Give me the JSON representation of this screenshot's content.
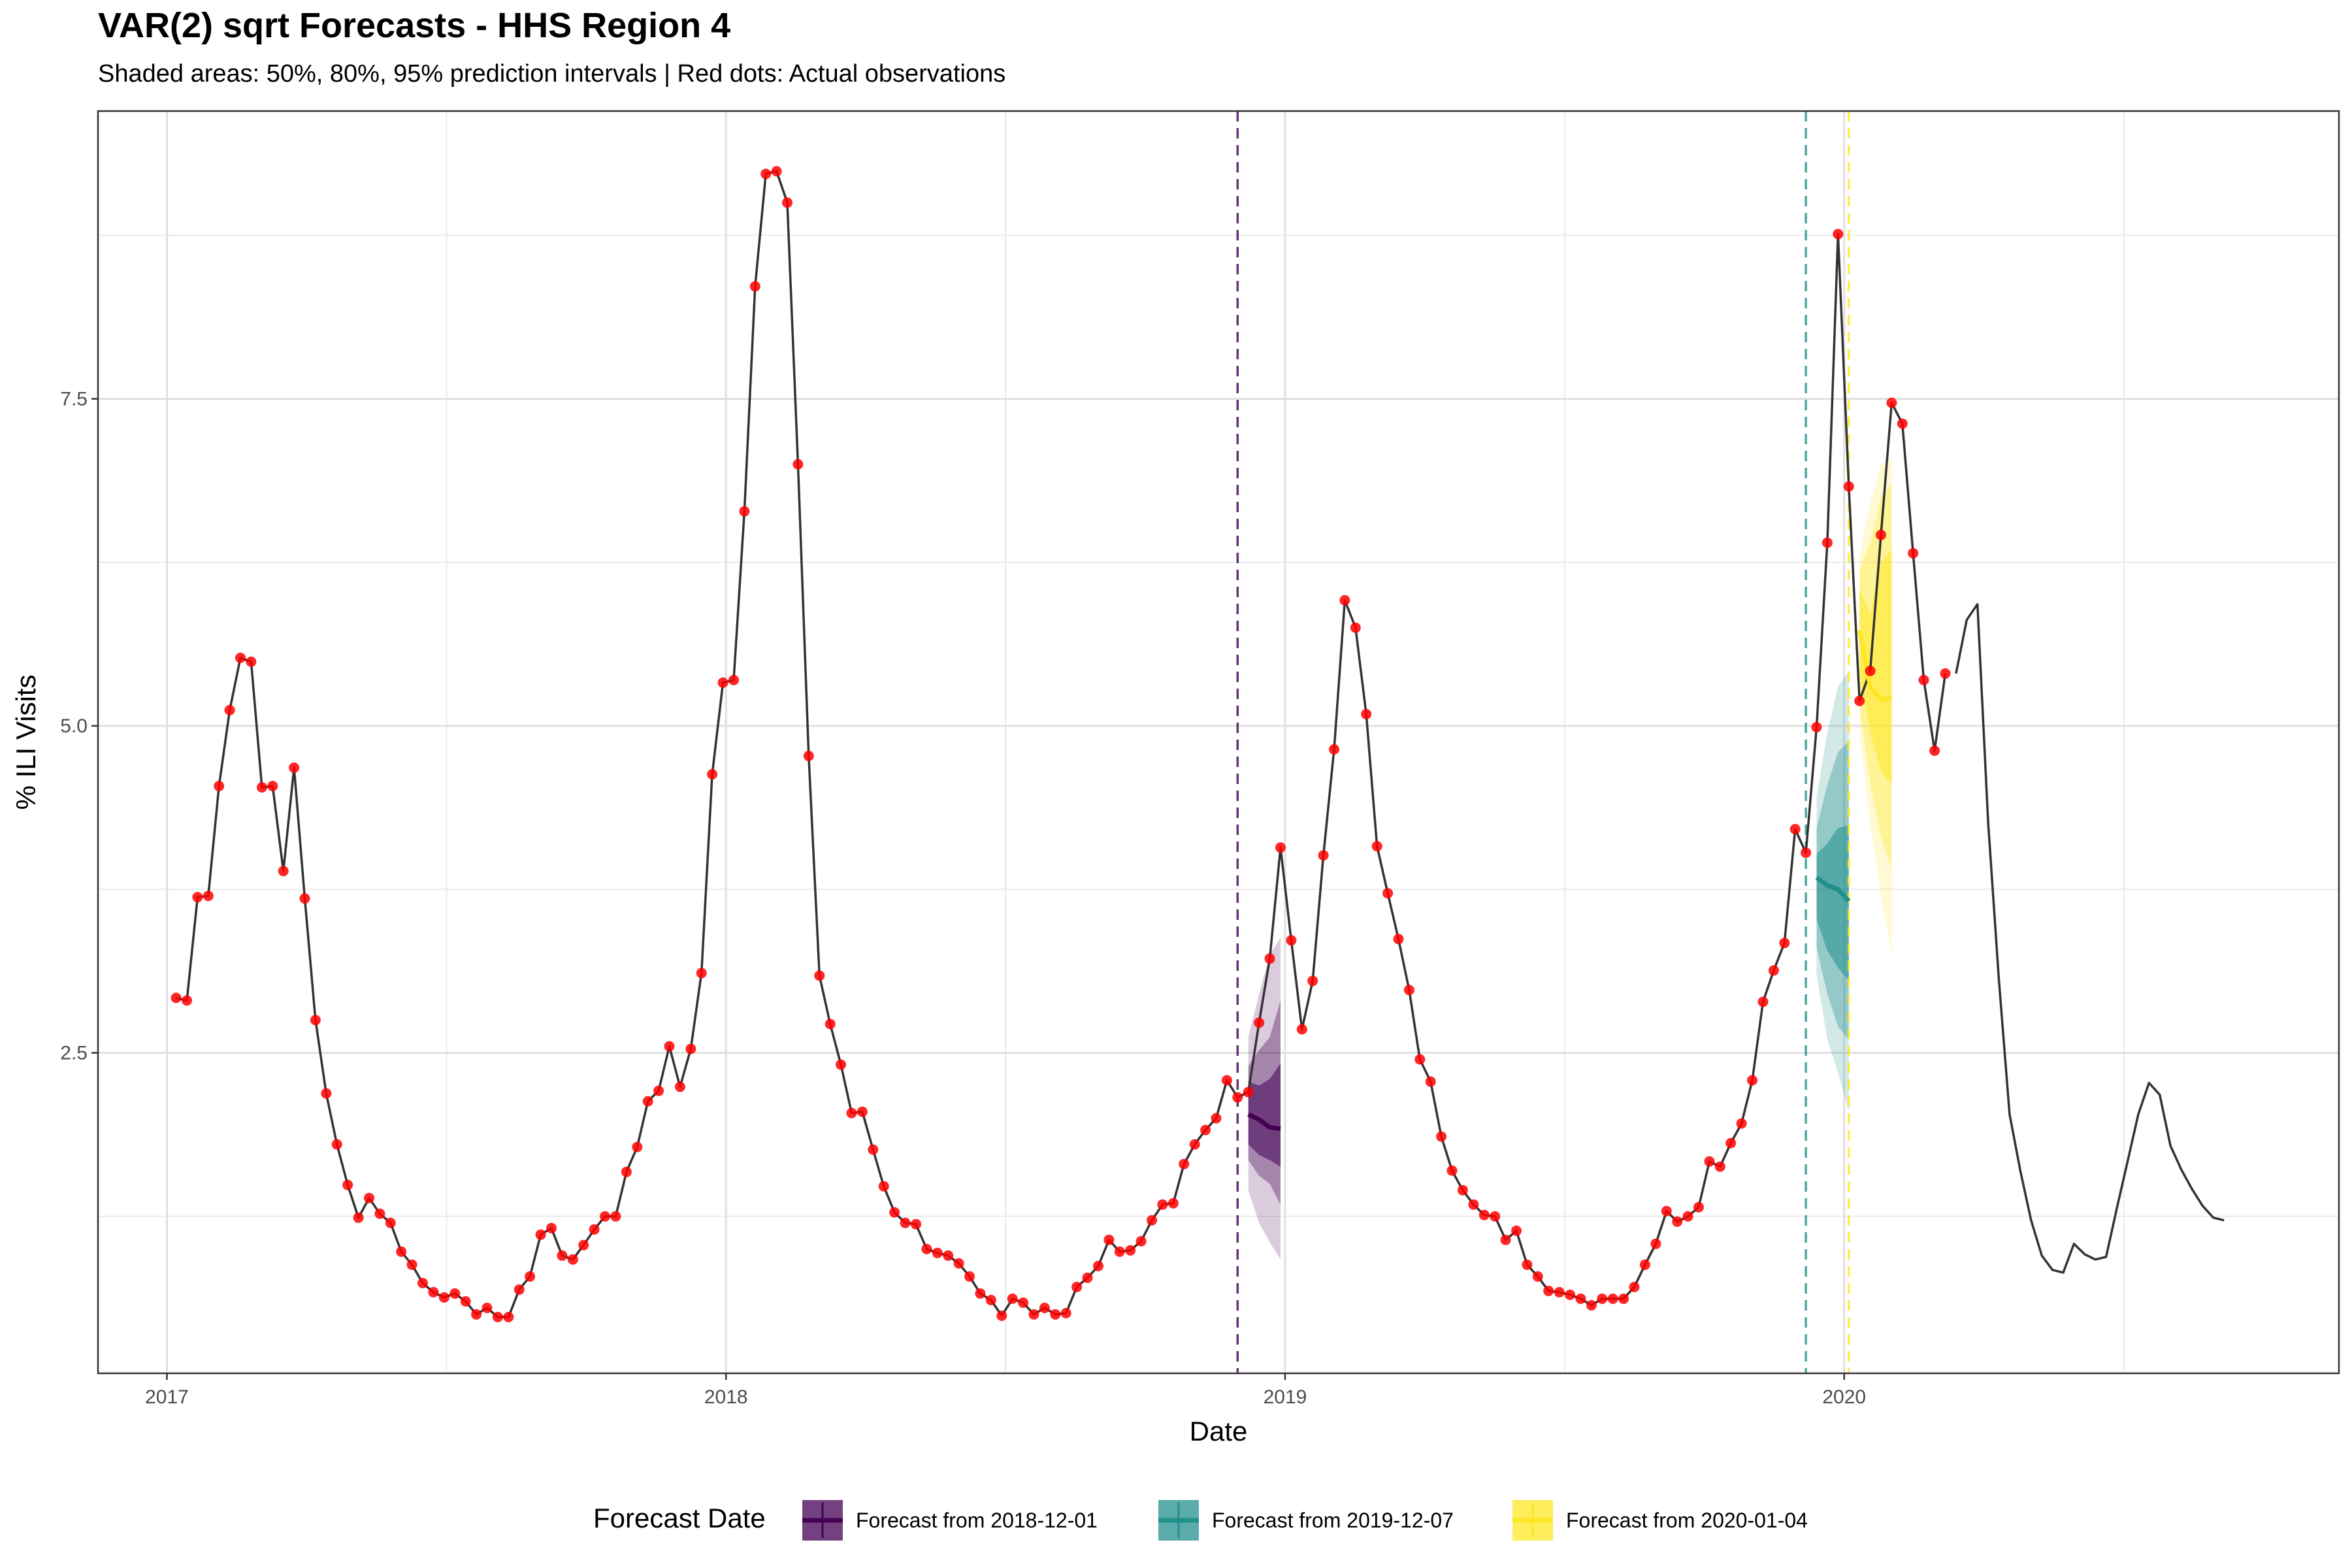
{
  "title": "VAR(2) sqrt Forecasts - HHS Region 4",
  "subtitle": "Shaded areas: 50%, 80%, 95% prediction intervals | Red dots: Actual observations",
  "chart_data": {
    "type": "line",
    "xlabel": "Date",
    "ylabel": "% ILI Visits",
    "xlim": [
      "2016-11-17",
      "2020-11-19"
    ],
    "ylim": [
      0.05,
      9.7
    ],
    "x_ticks": [
      "2017-01-01",
      "2018-01-01",
      "2019-01-01",
      "2020-01-01"
    ],
    "x_tick_labels": [
      "2017",
      "2018",
      "2019",
      "2020"
    ],
    "y_ticks": [
      2.5,
      5.0,
      7.5
    ],
    "y_tick_labels": [
      "2.5",
      "5.0",
      "7.5"
    ],
    "grid": true,
    "legend": {
      "title": "Forecast Date",
      "position": "bottom",
      "entries": [
        "Forecast from 2018-12-01",
        "Forecast from 2019-12-07",
        "Forecast from 2020-01-04"
      ]
    },
    "series": [
      {
        "name": "Actual observations",
        "color": "#333333",
        "marker_color": "#ff0000",
        "start": "2017-01-07",
        "step_days": 7,
        "values": [
          2.92,
          2.9,
          3.69,
          3.7,
          4.54,
          5.12,
          5.52,
          5.49,
          4.53,
          4.54,
          3.89,
          4.68,
          3.68,
          2.75,
          2.19,
          1.8,
          1.49,
          1.24,
          1.39,
          1.27,
          1.2,
          0.98,
          0.88,
          0.74,
          0.67,
          0.63,
          0.66,
          0.6,
          0.5,
          0.55,
          0.48,
          0.48,
          0.69,
          0.79,
          1.11,
          1.16,
          0.95,
          0.92,
          1.03,
          1.15,
          1.25,
          1.25,
          1.59,
          1.78,
          2.13,
          2.21,
          2.55,
          2.24,
          2.53,
          3.11,
          4.63,
          5.33,
          5.35,
          6.64,
          8.36,
          9.22,
          9.24,
          9.0,
          7.0,
          4.77,
          3.09,
          2.72,
          2.41,
          2.04,
          2.05,
          1.76,
          1.48,
          1.28,
          1.2,
          1.19,
          1.0,
          0.97,
          0.95,
          0.89,
          0.79,
          0.66,
          0.61,
          0.49,
          0.62,
          0.59,
          0.5,
          0.55,
          0.5,
          0.51,
          0.71,
          0.78,
          0.87,
          1.07,
          0.98,
          0.99,
          1.06,
          1.22,
          1.34,
          1.35,
          1.65,
          1.8,
          1.91,
          2.0,
          2.29,
          2.16,
          2.2,
          2.73,
          3.22,
          4.07,
          3.36,
          2.68,
          3.05,
          4.01,
          4.82,
          5.96,
          5.75,
          5.09,
          4.08,
          3.72,
          3.37,
          2.98,
          2.45,
          2.28,
          1.86,
          1.6,
          1.45,
          1.34,
          1.26,
          1.25,
          1.07,
          1.14,
          0.88,
          0.79,
          0.68,
          0.67,
          0.65,
          0.62,
          0.57,
          0.62,
          0.62,
          0.62,
          0.71,
          0.88,
          1.04,
          1.29,
          1.21,
          1.25,
          1.32,
          1.67,
          1.63,
          1.81,
          1.96,
          2.29,
          2.89,
          3.13,
          3.34,
          4.21,
          4.03,
          4.99,
          6.4,
          8.76,
          6.83,
          5.19,
          5.42,
          6.46,
          7.47,
          7.31,
          6.32,
          5.35,
          4.81,
          5.4
        ]
      },
      {
        "name": "Actual (no marker)",
        "color": "#333333",
        "start": "2020-03-14",
        "step_days": 7,
        "values": [
          5.4,
          5.81,
          5.93,
          4.26,
          3.06,
          2.03,
          1.6,
          1.22,
          0.95,
          0.84,
          0.82,
          1.04,
          0.96,
          0.92,
          0.94,
          1.31,
          1.67,
          2.03,
          2.27,
          2.18,
          1.79,
          1.61,
          1.46,
          1.33,
          1.24,
          1.22
        ]
      }
    ],
    "forecasts": [
      {
        "name": "Forecast from 2018-12-01",
        "origin": "2018-12-01",
        "color": "#440154",
        "dates": [
          "2018-12-08",
          "2018-12-15",
          "2018-12-22",
          "2018-12-29"
        ],
        "median": [
          2.03,
          1.99,
          1.93,
          1.92
        ],
        "pi50": [
          [
            1.8,
            2.28
          ],
          [
            1.72,
            2.25
          ],
          [
            1.68,
            2.3
          ],
          [
            1.63,
            2.42
          ]
        ],
        "pi80": [
          [
            1.68,
            2.4
          ],
          [
            1.56,
            2.52
          ],
          [
            1.5,
            2.62
          ],
          [
            1.34,
            2.9
          ]
        ],
        "pi95": [
          [
            1.45,
            2.62
          ],
          [
            1.2,
            2.95
          ],
          [
            1.05,
            3.25
          ],
          [
            0.92,
            3.38
          ]
        ]
      },
      {
        "name": "Forecast from 2019-12-07",
        "origin": "2019-12-07",
        "color": "#21908c",
        "dates": [
          "2019-12-14",
          "2019-12-21",
          "2019-12-28",
          "2020-01-04"
        ],
        "median": [
          3.84,
          3.78,
          3.75,
          3.66
        ],
        "pi50": [
          [
            3.52,
            4.02
          ],
          [
            3.28,
            4.1
          ],
          [
            3.15,
            4.22
          ],
          [
            3.05,
            4.24
          ]
        ],
        "pi80": [
          [
            3.3,
            4.22
          ],
          [
            2.95,
            4.55
          ],
          [
            2.7,
            4.8
          ],
          [
            2.6,
            4.88
          ]
        ],
        "pi95": [
          [
            3.1,
            4.45
          ],
          [
            2.6,
            4.95
          ],
          [
            2.35,
            5.3
          ],
          [
            2.05,
            5.42
          ]
        ]
      },
      {
        "name": "Forecast from 2020-01-04",
        "origin": "2020-01-04",
        "color": "#fde725",
        "dates": [
          "2020-01-11",
          "2020-01-18",
          "2020-01-25",
          "2020-02-01"
        ],
        "median": [
          5.73,
          5.3,
          5.2,
          5.21
        ],
        "pi50": [
          [
            5.4,
            6.05
          ],
          [
            4.95,
            5.85
          ],
          [
            4.65,
            6.25
          ],
          [
            4.55,
            6.35
          ]
        ],
        "pi80": [
          [
            5.15,
            6.2
          ],
          [
            4.55,
            6.4
          ],
          [
            4.15,
            6.75
          ],
          [
            3.9,
            6.85
          ]
        ],
        "pi95": [
          [
            4.95,
            6.3
          ],
          [
            4.25,
            6.7
          ],
          [
            3.7,
            7.0
          ],
          [
            3.25,
            7.05
          ]
        ]
      }
    ]
  }
}
